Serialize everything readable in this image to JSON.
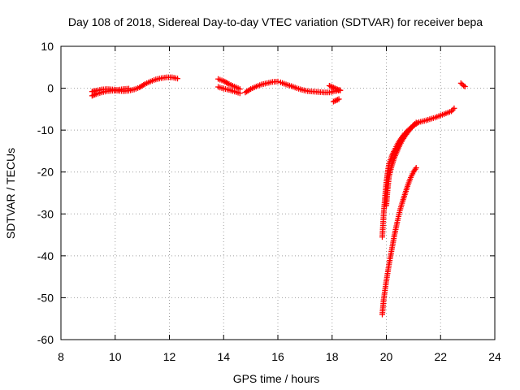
{
  "chart_data": {
    "type": "scatter",
    "title": "Day 108 of 2018, Sidereal Day-to-day VTEC variation (SDTVAR) for receiver bepa",
    "xlabel": "GPS time / hours",
    "ylabel": "SDTVAR / TECUs",
    "xlim": [
      8,
      24
    ],
    "ylim": [
      -60,
      10
    ],
    "xticks": [
      8,
      10,
      12,
      14,
      16,
      18,
      20,
      22,
      24
    ],
    "xtick_labels": [
      "8",
      "10",
      "12",
      "14",
      "16",
      "18",
      "20",
      "22",
      "24"
    ],
    "yticks": [
      -60,
      -50,
      -40,
      -30,
      -20,
      -10,
      0,
      10
    ],
    "ytick_labels": [
      "-60",
      "-50",
      "-40",
      "-30",
      "-20",
      "-10",
      "0",
      "10"
    ],
    "grid": true,
    "marker": "plus",
    "color": "#ff0000",
    "segments": [
      {
        "x": [
          9.15,
          9.3,
          9.5,
          9.7,
          9.9,
          10.1,
          10.3,
          10.5,
          10.7,
          10.9,
          11.1,
          11.3,
          11.5,
          11.7,
          11.9,
          12.1,
          12.3
        ],
        "y": [
          -1.8,
          -1.4,
          -1.0,
          -0.7,
          -0.6,
          -0.6,
          -0.7,
          -0.6,
          -0.3,
          0.2,
          1.0,
          1.6,
          2.1,
          2.4,
          2.6,
          2.6,
          2.3
        ]
      },
      {
        "x": [
          9.15,
          9.3,
          9.5,
          9.7,
          9.9,
          10.1,
          10.3,
          10.5
        ],
        "y": [
          -0.8,
          -0.6,
          -0.3,
          -0.2,
          -0.3,
          -0.4,
          -0.2,
          -0.1
        ]
      },
      {
        "x": [
          13.8,
          14.0,
          14.2,
          14.4,
          14.6
        ],
        "y": [
          2.2,
          1.7,
          1.0,
          0.4,
          -0.2
        ]
      },
      {
        "x": [
          13.8,
          14.0,
          14.2,
          14.4,
          14.6
        ],
        "y": [
          0.3,
          -0.1,
          -0.4,
          -0.8,
          -1.2
        ]
      },
      {
        "x": [
          14.8,
          15.0,
          15.2,
          15.4,
          15.6,
          15.8,
          16.0
        ],
        "y": [
          -1.0,
          -0.2,
          0.4,
          0.9,
          1.2,
          1.5,
          1.6
        ]
      },
      {
        "x": [
          16.1,
          16.3,
          16.5,
          16.7,
          16.9,
          17.1,
          17.3,
          17.5,
          17.7,
          17.9,
          18.1,
          18.3
        ],
        "y": [
          1.4,
          0.9,
          0.5,
          0.0,
          -0.4,
          -0.7,
          -0.8,
          -0.9,
          -1.0,
          -1.0,
          -0.7,
          -0.5
        ]
      },
      {
        "x": [
          17.9,
          18.0,
          18.1,
          18.2,
          18.3
        ],
        "y": [
          0.6,
          0.3,
          0.0,
          -0.3,
          -0.5
        ]
      },
      {
        "x": [
          18.05,
          18.15,
          18.25
        ],
        "y": [
          -3.2,
          -2.9,
          -2.6
        ]
      },
      {
        "x": [
          19.85,
          19.9,
          19.95,
          20.0,
          20.05,
          20.1,
          20.2,
          20.3,
          20.4,
          20.5,
          20.6,
          20.7,
          20.8,
          20.9,
          21.0,
          21.1,
          21.2,
          21.4,
          21.6,
          21.8,
          22.0,
          22.2,
          22.4,
          22.5
        ],
        "y": [
          -35.5,
          -30.0,
          -26.0,
          -22.5,
          -20.0,
          -18.0,
          -16.2,
          -14.8,
          -13.5,
          -12.4,
          -11.5,
          -10.7,
          -10.0,
          -9.5,
          -9.0,
          -8.5,
          -8.1,
          -7.8,
          -7.4,
          -7.0,
          -6.5,
          -6.0,
          -5.5,
          -4.8
        ]
      },
      {
        "x": [
          20.0,
          20.05,
          20.1,
          20.2,
          20.3,
          20.4,
          20.5,
          20.6,
          20.7,
          20.8,
          20.9,
          21.0,
          21.1
        ],
        "y": [
          -28.0,
          -24.0,
          -21.0,
          -18.5,
          -16.5,
          -15.0,
          -13.5,
          -12.3,
          -11.3,
          -10.4,
          -9.6,
          -8.8,
          -8.2
        ]
      },
      {
        "x": [
          19.85,
          19.9,
          20.0,
          20.1,
          20.2,
          20.3,
          20.4,
          20.5,
          20.6,
          20.7,
          20.8,
          20.9,
          21.0,
          21.1
        ],
        "y": [
          -54.0,
          -50.5,
          -46.0,
          -42.0,
          -38.5,
          -35.0,
          -32.0,
          -29.2,
          -27.0,
          -25.0,
          -23.0,
          -21.3,
          -20.0,
          -19.0
        ]
      },
      {
        "x": [
          22.75,
          22.8,
          22.85,
          22.9
        ],
        "y": [
          1.2,
          0.9,
          0.6,
          0.4
        ]
      }
    ]
  }
}
